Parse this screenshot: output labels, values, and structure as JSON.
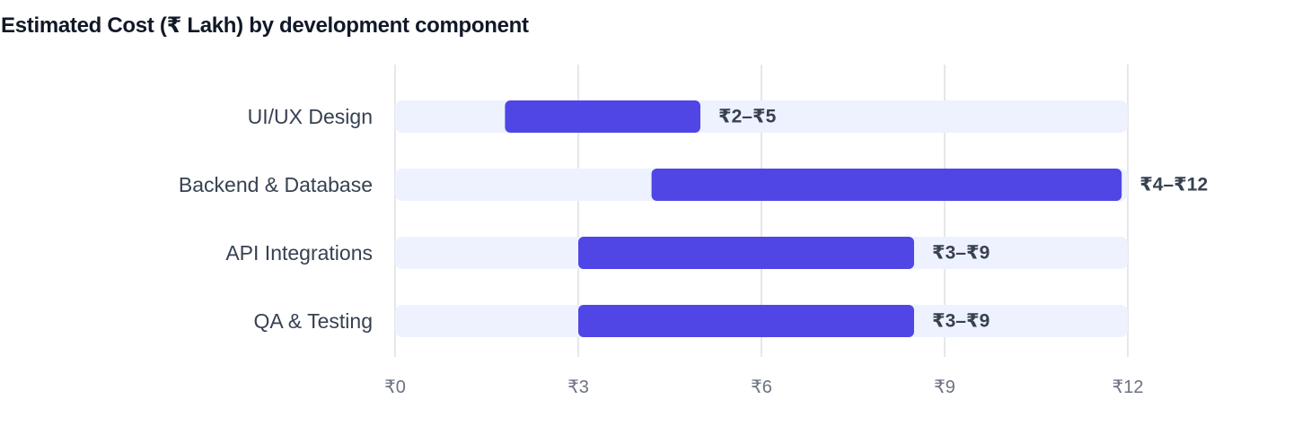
{
  "chart_data": {
    "type": "bar",
    "title": "Estimated Cost (₹ Lakh) by development component",
    "orientation": "horizontal",
    "bar_style": "floating-range",
    "categories": [
      "UI/UX Design",
      "Backend & Database",
      "API Integrations",
      "QA & Testing"
    ],
    "ranges": [
      {
        "start": 1.8,
        "end": 5.0,
        "label": "₹2–₹5"
      },
      {
        "start": 4.2,
        "end": 11.9,
        "label": "₹4–₹12"
      },
      {
        "start": 3.0,
        "end": 8.5,
        "label": "₹3–₹9"
      },
      {
        "start": 3.0,
        "end": 8.5,
        "label": "₹3–₹9"
      }
    ],
    "xlim": [
      0,
      12
    ],
    "xticks": [
      0,
      3,
      6,
      9,
      12
    ],
    "xtick_labels": [
      "₹0",
      "₹3",
      "₹6",
      "₹9",
      "₹12"
    ],
    "xlabel": "",
    "ylabel": "",
    "grid": "vertical",
    "legend": "none",
    "colors": {
      "bar": "#4f46e5",
      "track": "#eef2ff",
      "grid": "#e5e7eb",
      "title": "#111827",
      "label": "#374151",
      "tick": "#6b7280"
    }
  }
}
